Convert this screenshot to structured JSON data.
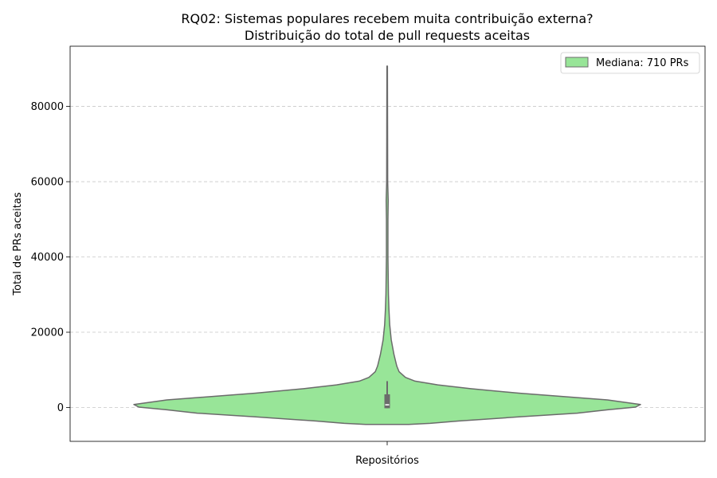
{
  "chart_data": {
    "type": "violin",
    "title": "RQ02: Sistemas populares recebem muita contribuição externa?",
    "subtitle": "Distribuição do total de pull requests aceitas",
    "xlabel": "Repositórios",
    "ylabel": "Total de PRs aceitas",
    "category": "",
    "ylim": [
      -9000,
      96000
    ],
    "yticks": [
      0,
      20000,
      40000,
      60000,
      80000
    ],
    "grid": "y",
    "legend": {
      "position": "top-right",
      "label": "Mediana: 710 PRs"
    },
    "colors": {
      "fill": "#98e598",
      "edge": "#6b6b6b",
      "box": "#6b6b6b",
      "median": "#ffffff"
    },
    "summary": {
      "median": 710,
      "q1": -200,
      "q3": 3500,
      "whisker_low": -200,
      "whisker_high": 7000,
      "max": 90700
    },
    "density_profile": [
      {
        "y": -4500,
        "half_width": 0.085
      },
      {
        "y": -4200,
        "half_width": 0.17
      },
      {
        "y": -3600,
        "half_width": 0.28
      },
      {
        "y": -2500,
        "half_width": 0.52
      },
      {
        "y": -1500,
        "half_width": 0.75
      },
      {
        "y": -600,
        "half_width": 0.87
      },
      {
        "y": 100,
        "half_width": 0.98
      },
      {
        "y": 800,
        "half_width": 1.0
      },
      {
        "y": 2000,
        "half_width": 0.87
      },
      {
        "y": 3800,
        "half_width": 0.52
      },
      {
        "y": 5000,
        "half_width": 0.33
      },
      {
        "y": 6000,
        "half_width": 0.2
      },
      {
        "y": 7000,
        "half_width": 0.11
      },
      {
        "y": 8000,
        "half_width": 0.072
      },
      {
        "y": 9500,
        "half_width": 0.047
      },
      {
        "y": 11000,
        "half_width": 0.038
      },
      {
        "y": 14000,
        "half_width": 0.027
      },
      {
        "y": 18000,
        "half_width": 0.016
      },
      {
        "y": 22000,
        "half_width": 0.01
      },
      {
        "y": 26000,
        "half_width": 0.007
      },
      {
        "y": 30000,
        "half_width": 0.005
      },
      {
        "y": 40000,
        "half_width": 0.003
      },
      {
        "y": 50000,
        "half_width": 0.003
      },
      {
        "y": 55000,
        "half_width": 0.004
      },
      {
        "y": 60000,
        "half_width": 0.002
      },
      {
        "y": 75000,
        "half_width": 0.0015
      },
      {
        "y": 90700,
        "half_width": 0.001
      }
    ]
  }
}
